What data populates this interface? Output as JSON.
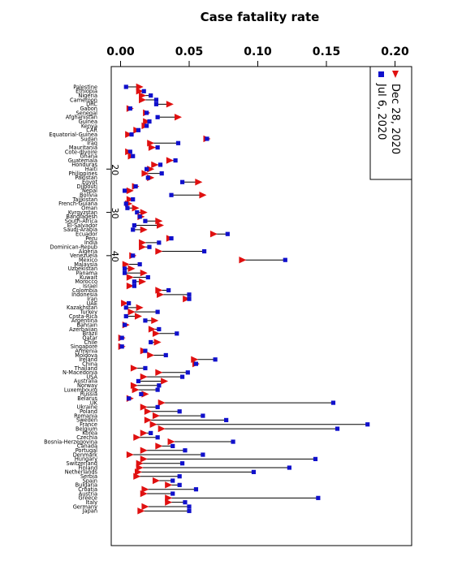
{
  "chart_data": {
    "type": "scatter",
    "title": "Case fatality rate",
    "x_ticks": [
      "0.00",
      "0.05",
      "0.10",
      "0.15",
      "0.20"
    ],
    "xlim": [
      0,
      0.2
    ],
    "y_ticks": [
      "20",
      "30",
      "40"
    ],
    "grid": false,
    "legend_placement": "top-right",
    "orientation": "rotated",
    "series": [
      {
        "name": "Jul 6, 2020",
        "marker": "square",
        "color": "#1010cc"
      },
      {
        "name": "Dec 28, 2020",
        "marker": "triangle",
        "color": "#e01010"
      }
    ],
    "categories": [
      "Palestine",
      "Ethiopia",
      "Nigeria",
      "Cameroon",
      "DRC",
      "Gabon",
      "Senegal",
      "Afghanistan",
      "Guinea",
      "Kenya",
      "CAR",
      "Equatorial-Guinea",
      "Sudan",
      "Iraq",
      "Mauritania",
      "Cote-dIvoire",
      "Ghana",
      "Guatemala",
      "Honduras",
      "Haiti",
      "Philippines",
      "Pakistan",
      "Egypt",
      "Djibouti",
      "Nepal",
      "Bolivia",
      "Tajikistan",
      "French-Guiana",
      "Oman",
      "Kyrgyzstan",
      "Bangladesh",
      "South-Africa",
      "El-Salvador",
      "Saudi-Arabia",
      "Ecuador",
      "Peru",
      "India",
      "Dominican-Repub",
      "Algeria",
      "Venezuela",
      "Mexico",
      "Malaysia",
      "Uzbekistan",
      "Panama",
      "Kuwait",
      "Morocco",
      "Israel",
      "Colombia",
      "Indonesia",
      "Iran",
      "UAE",
      "Kazakhstan",
      "Turkey",
      "Costa-Rica",
      "Argentina",
      "Bahrain",
      "Azerbaijan",
      "Brazil",
      "Qatar",
      "Chile",
      "Singapore",
      "Armenia",
      "Moldova",
      "Ireland",
      "China",
      "Thailand",
      "N-Macedonia",
      "USA",
      "Australia",
      "Norway",
      "Luxembourg",
      "Russia",
      "Belarus",
      "UK",
      "Ukraine",
      "Poland",
      "Romania",
      "Sweden",
      "France",
      "Belgium",
      "Korea",
      "Czechia",
      "Bosnia-Herzegovina",
      "Canada",
      "Portugal",
      "Denmark",
      "Hungary",
      "Switzerland",
      "Finland",
      "Netherlands",
      "Serbia",
      "Spain",
      "Bulgaria",
      "Croatia",
      "Austria",
      "Greece",
      "Italy",
      "Germany",
      "Japan"
    ],
    "jul_6_2020": [
      0.004,
      0.017,
      0.022,
      0.026,
      0.026,
      0.007,
      0.019,
      0.027,
      0.021,
      0.019,
      0.013,
      0.008,
      0.063,
      0.042,
      0.027,
      0.007,
      0.009,
      0.04,
      0.029,
      0.019,
      0.03,
      0.02,
      0.045,
      0.011,
      0.003,
      0.037,
      0.009,
      0.004,
      0.005,
      0.012,
      0.014,
      0.018,
      0.01,
      0.009,
      0.078,
      0.037,
      0.028,
      0.021,
      0.061,
      0.009,
      0.12,
      0.014,
      0.003,
      0.003,
      0.02,
      0.01,
      0.01,
      0.035,
      0.05,
      0.05,
      0.006,
      0.004,
      0.027,
      0.004,
      0.018,
      0.003,
      0.028,
      0.041,
      0.001,
      0.022,
      0.001,
      0.018,
      0.033,
      0.069,
      0.055,
      0.018,
      0.049,
      0.045,
      0.013,
      0.028,
      0.027,
      0.015,
      0.006,
      0.155,
      0.027,
      0.043,
      0.06,
      0.077,
      0.18,
      0.158,
      0.022,
      0.027,
      0.082,
      0.038,
      0.047,
      0.06,
      0.142,
      0.045,
      0.123,
      0.097,
      0.043,
      0.038,
      0.043,
      0.055,
      0.038,
      0.144,
      0.047,
      0.05,
      0.05
    ],
    "dec_28_2020": [
      0.014,
      0.014,
      0.016,
      0.016,
      0.036,
      0.007,
      0.019,
      0.042,
      0.019,
      0.018,
      0.012,
      0.006,
      0.063,
      0.022,
      0.023,
      0.006,
      0.008,
      0.036,
      0.025,
      0.022,
      0.018,
      0.022,
      0.057,
      0.011,
      0.007,
      0.06,
      0.007,
      0.006,
      0.011,
      0.017,
      0.015,
      0.028,
      0.029,
      0.017,
      0.068,
      0.036,
      0.016,
      0.016,
      0.028,
      0.009,
      0.089,
      0.004,
      0.008,
      0.017,
      0.007,
      0.016,
      0.007,
      0.028,
      0.029,
      0.048,
      0.003,
      0.014,
      0.008,
      0.013,
      0.025,
      0.004,
      0.023,
      0.026,
      0.001,
      0.027,
      0.001,
      0.017,
      0.022,
      0.054,
      0.055,
      0.01,
      0.028,
      0.017,
      0.032,
      0.01,
      0.011,
      0.018,
      0.007,
      0.03,
      0.017,
      0.02,
      0.026,
      0.02,
      0.024,
      0.03,
      0.017,
      0.012,
      0.037,
      0.028,
      0.017,
      0.007,
      0.017,
      0.014,
      0.014,
      0.013,
      0.012,
      0.026,
      0.035,
      0.018,
      0.017,
      0.035,
      0.035,
      0.018,
      0.015
    ]
  }
}
